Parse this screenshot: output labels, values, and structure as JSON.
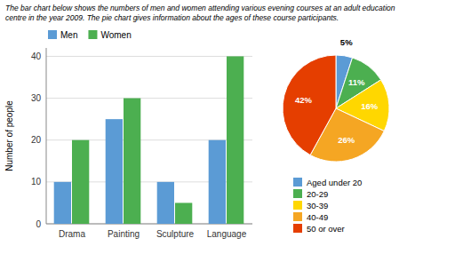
{
  "chart_data": [
    {
      "type": "bar",
      "title": "The bar chart below shows the numbers of men and women attending various evening courses at an adult education\ncentre in the year 2009. The pie chart gives information about the ages of these course participants.",
      "ylabel": "Number of people",
      "categories": [
        "Drama",
        "Painting",
        "Sculpture",
        "Language"
      ],
      "series": [
        {
          "name": "Men",
          "color": "#5b9bd5",
          "values": [
            10,
            25,
            10,
            20
          ]
        },
        {
          "name": "Women",
          "color": "#4caf50",
          "values": [
            20,
            30,
            5,
            40
          ]
        }
      ],
      "ylim": [
        0,
        42
      ],
      "yticks": [
        0,
        10,
        20,
        30,
        40
      ],
      "grid": true,
      "legend": "upper left"
    },
    {
      "type": "pie",
      "categories": [
        "Aged under 20",
        "20-29",
        "30-39",
        "40-49",
        "50 or over"
      ],
      "values": [
        5,
        11,
        16,
        26,
        42
      ],
      "value_labels": [
        "5%",
        "11%",
        "16%",
        "26%",
        "42%"
      ],
      "colors": [
        "#5b9bd5",
        "#4caf50",
        "#ffd700",
        "#f5a623",
        "#e53e00"
      ],
      "data_labels": true,
      "legend": "bottom"
    }
  ]
}
